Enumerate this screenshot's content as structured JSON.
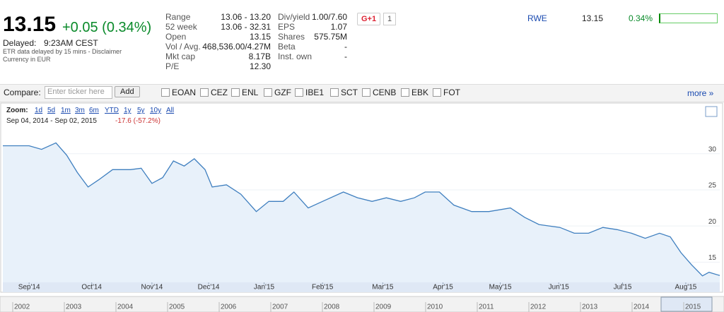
{
  "quote": {
    "price": "13.15",
    "change": "+0.05 (0.34%)",
    "status": "Delayed:",
    "time": "9:23AM CEST",
    "note": "ETR data delayed by 15 mins - Disclaimer",
    "currency": "Currency in EUR"
  },
  "stats_left": [
    {
      "label": "Range",
      "value": "13.06 - 13.20"
    },
    {
      "label": "52 week",
      "value": "13.06 - 32.31"
    },
    {
      "label": "Open",
      "value": "13.15"
    },
    {
      "label": "Vol / Avg.",
      "value": "468,536.00/4.27M"
    },
    {
      "label": "Mkt cap",
      "value": "8.17B"
    },
    {
      "label": "P/E",
      "value": "12.30"
    }
  ],
  "stats_right": [
    {
      "label": "Div/yield",
      "value": "1.00/7.60"
    },
    {
      "label": "EPS",
      "value": "1.07"
    },
    {
      "label": "Shares",
      "value": "575.75M"
    },
    {
      "label": "Beta",
      "value": "-"
    },
    {
      "label": "Inst. own",
      "value": "-"
    }
  ],
  "social": {
    "button": "G+1",
    "count": "1"
  },
  "peer": {
    "ticker": "RWE",
    "price": "13.15",
    "change": "0.34%"
  },
  "compare": {
    "label": "Compare:",
    "placeholder": "Enter ticker here",
    "button": "Add",
    "tickers": [
      "EOAN",
      "CEZ",
      "ENL",
      "GZF",
      "IBE1",
      "SCT",
      "CENB",
      "EBK",
      "FOT"
    ],
    "more": "more »"
  },
  "chart_header": {
    "zoom_label": "Zoom:",
    "zoom_options": [
      "1d",
      "5d",
      "1m",
      "3m",
      "6m",
      "YTD",
      "1y",
      "5y",
      "10y",
      "All"
    ],
    "range": "Sep 04, 2014 - Sep 02, 2015",
    "range_change": "-17.6 (-57.2%)"
  },
  "chart_data": {
    "type": "line",
    "color": "#3f7fbf",
    "x": [
      -0.44,
      0,
      0.21,
      0.45,
      0.63,
      0.81,
      0.99,
      1.17,
      1.4,
      1.7,
      1.88,
      2.06,
      2.24,
      2.42,
      2.6,
      2.77,
      2.95,
      3.07,
      3.31,
      3.55,
      3.81,
      4.02,
      4.26,
      4.44,
      4.68,
      4.92,
      5.27,
      5.51,
      5.75,
      5.99,
      6.23,
      6.46,
      6.64,
      6.88,
      7.12,
      7.42,
      7.71,
      8.07,
      8.31,
      8.55,
      8.9,
      9.14,
      9.38,
      9.62,
      9.86,
      10.1,
      10.33,
      10.57,
      10.75,
      10.93,
      11.11,
      11.29,
      11.4,
      11.58
    ],
    "values": [
      31.1,
      31.1,
      30.6,
      31.5,
      29.8,
      27.4,
      25.4,
      26.4,
      27.8,
      27.8,
      28.0,
      25.9,
      26.7,
      29.0,
      28.3,
      29.3,
      27.8,
      25.4,
      25.7,
      24.4,
      22.0,
      23.4,
      23.4,
      24.7,
      22.5,
      23.4,
      24.7,
      23.9,
      23.4,
      23.9,
      23.4,
      23.9,
      24.7,
      24.7,
      22.9,
      22.0,
      22.0,
      22.5,
      21.2,
      20.2,
      19.8,
      19.0,
      19.0,
      19.8,
      19.5,
      19.0,
      18.3,
      19.0,
      18.5,
      16.3,
      14.6,
      13.1,
      13.6,
      13.15
    ],
    "xlim": [
      -0.44,
      11.58
    ],
    "xticks": [
      {
        "value": 0,
        "label": "Sep'14"
      },
      {
        "value": 1.05,
        "label": "Oct'14"
      },
      {
        "value": 2.06,
        "label": "Nov'14"
      },
      {
        "value": 3.01,
        "label": "Dec'14"
      },
      {
        "value": 3.94,
        "label": "Jan'15"
      },
      {
        "value": 4.92,
        "label": "Feb'15"
      },
      {
        "value": 5.93,
        "label": "Mar'15"
      },
      {
        "value": 6.94,
        "label": "Apr'15"
      },
      {
        "value": 7.9,
        "label": "May'15"
      },
      {
        "value": 8.88,
        "label": "Jun'15"
      },
      {
        "value": 9.95,
        "label": "Jul'15"
      },
      {
        "value": 11.01,
        "label": "Aug'15"
      }
    ],
    "ylim": [
      12.2,
      33.3
    ],
    "yticks": [
      15,
      20,
      25,
      30
    ],
    "grid": true
  },
  "navigator": {
    "years": [
      "2002",
      "2003",
      "2004",
      "2005",
      "2006",
      "2007",
      "2008",
      "2009",
      "2010",
      "2011",
      "2012",
      "2013",
      "2014",
      "2015"
    ]
  }
}
